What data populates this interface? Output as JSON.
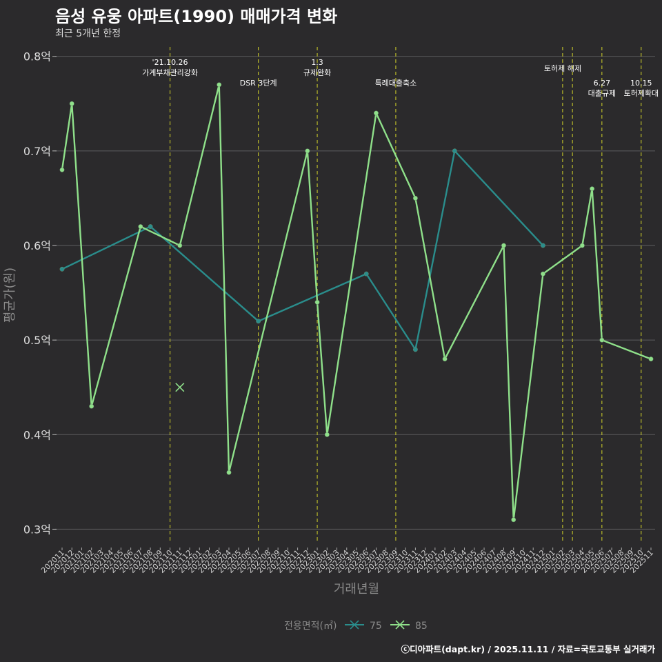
{
  "title": "음성 유웅 아파트(1990) 매매가격 변화",
  "subtitle": "최근 5개년 한정",
  "caption": "ⓒ디아파트(dapt.kr) / 2025.11.11 / 자료=국토교통부 실거래가",
  "chart_data": {
    "type": "line",
    "xlabel": "거래년월",
    "ylabel": "평균가(원)",
    "ylim": [
      0.285,
      0.81
    ],
    "yticks": [
      0.3,
      0.4,
      0.5,
      0.6,
      0.7,
      0.8
    ],
    "ytick_labels": [
      "0.3억",
      "0.4억",
      "0.5억",
      "0.6억",
      "0.7억",
      "0.8억"
    ],
    "categories": [
      "202011",
      "202012",
      "202101",
      "202102",
      "202103",
      "202104",
      "202105",
      "202106",
      "202107",
      "202108",
      "202109",
      "202110",
      "202111",
      "202112",
      "202201",
      "202202",
      "202203",
      "202204",
      "202205",
      "202206",
      "202207",
      "202208",
      "202209",
      "202210",
      "202211",
      "202212",
      "202301",
      "202302",
      "202303",
      "202304",
      "202305",
      "202306",
      "202307",
      "202308",
      "202309",
      "202310",
      "202311",
      "202312",
      "202401",
      "202402",
      "202403",
      "202404",
      "202405",
      "202406",
      "202407",
      "202408",
      "202409",
      "202410",
      "202411",
      "202412",
      "202501",
      "202502",
      "202503",
      "202504",
      "202505",
      "202506",
      "202507",
      "202508",
      "202509",
      "202510",
      "202511"
    ],
    "legend_title": "전용면적(㎡)",
    "series": [
      {
        "name": "75",
        "color": "#2a8d8c",
        "points": [
          [
            "202011",
            0.575
          ],
          [
            "202108",
            0.62
          ],
          [
            "202207",
            0.52
          ],
          [
            "202306",
            0.57
          ],
          [
            "202311",
            0.49
          ],
          [
            "202403",
            0.7
          ],
          [
            "202412",
            0.6
          ]
        ]
      },
      {
        "name": "85",
        "color": "#8fe08a",
        "points": [
          [
            "202011",
            0.68
          ],
          [
            "202012",
            0.75
          ],
          [
            "202102",
            0.43
          ],
          [
            "202107",
            0.62
          ],
          [
            "202111",
            0.6
          ],
          [
            "202203",
            0.77
          ],
          [
            "202204",
            0.36
          ],
          [
            "202212",
            0.7
          ],
          [
            "202301",
            0.54
          ],
          [
            "202302",
            0.4
          ],
          [
            "202307",
            0.74
          ],
          [
            "202311",
            0.65
          ],
          [
            "202402",
            0.48
          ],
          [
            "202408",
            0.6
          ],
          [
            "202409",
            0.31
          ],
          [
            "202412",
            0.57
          ],
          [
            "202504",
            0.6
          ],
          [
            "202505",
            0.66
          ],
          [
            "202506",
            0.5
          ],
          [
            "202511",
            0.48
          ]
        ]
      }
    ],
    "outliers": [
      {
        "series": "85",
        "x": "202111",
        "y": 0.45
      }
    ],
    "annotations": [
      {
        "x": "202110",
        "lines": [
          "'21.10.26",
          "가계부채관리강화"
        ],
        "row": 0
      },
      {
        "x": "202207",
        "lines": [
          "DSR 3단계"
        ],
        "row": 2
      },
      {
        "x": "202301",
        "lines": [
          "1.3",
          "규제완화"
        ],
        "row": 0
      },
      {
        "x": "202309",
        "lines": [
          "특례대출축소"
        ],
        "row": 2
      },
      {
        "x": "202502",
        "lines": [
          "토허제 해제"
        ],
        "row": 1
      },
      {
        "x": "202503",
        "lines": [],
        "row": 1
      },
      {
        "x": "202506",
        "lines": [
          "6.27",
          "대출규제"
        ],
        "row": 2
      },
      {
        "x": "202510",
        "lines": [
          "10.15",
          "토허제확대"
        ],
        "row": 2
      }
    ]
  }
}
